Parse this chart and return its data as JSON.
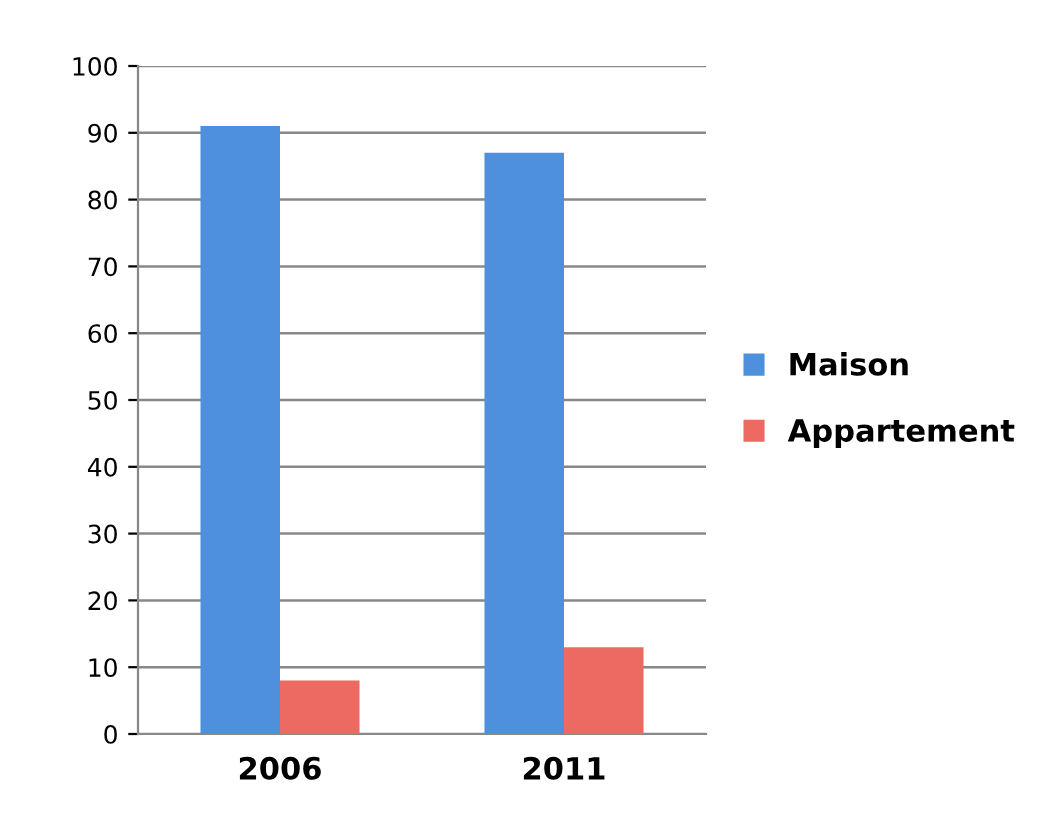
{
  "chart_data": {
    "type": "bar",
    "categories": [
      "2006",
      "2011"
    ],
    "series": [
      {
        "name": "Maison",
        "color": "#4f90dd",
        "values": [
          91,
          87
        ]
      },
      {
        "name": "Appartement",
        "color": "#ec6a62",
        "values": [
          8,
          13
        ]
      }
    ],
    "ylim": [
      0,
      100
    ],
    "yticks": [
      0,
      10,
      20,
      30,
      40,
      50,
      60,
      70,
      80,
      90,
      100
    ],
    "grid": "y",
    "legend": "right"
  }
}
